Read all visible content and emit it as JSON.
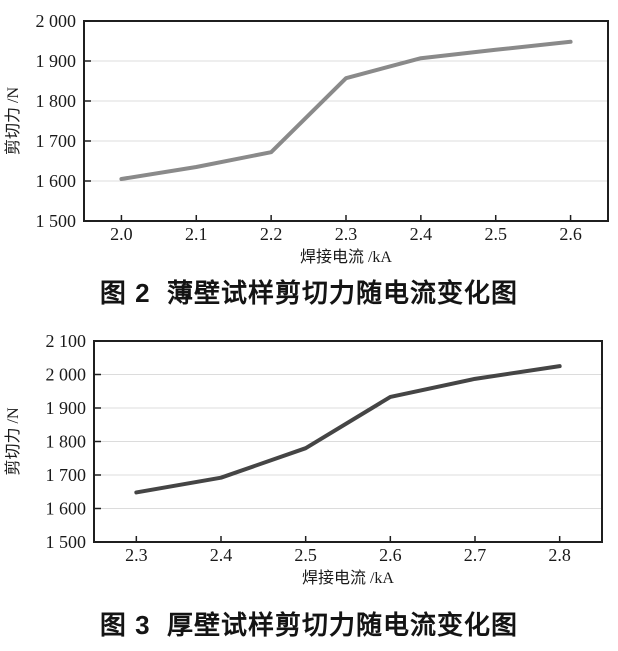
{
  "page": {
    "background": "#ffffff"
  },
  "chart_data": [
    {
      "type": "line",
      "figure_label": "图 2",
      "caption": "图 2  薄壁试样剪切力随电流变化图",
      "xlabel": "焊接电流 /kA",
      "ylabel": "剪切力 /N",
      "x_labels": [
        "2.0",
        "2.1",
        "2.2",
        "2.3",
        "2.4",
        "2.5",
        "2.6"
      ],
      "values": [
        1605,
        1635,
        1672,
        1857,
        1907,
        1928,
        1948
      ],
      "ylim": [
        1500,
        2000
      ],
      "ytick_step": 100,
      "ytick_labels": [
        "1 500",
        "1 600",
        "1 700",
        "1 800",
        "1 900",
        "2 000"
      ],
      "grid": true,
      "legend": "none",
      "line_color": "#8a8a8a",
      "axis_color": "#1f1f1f",
      "grid_color": "#dcdcdc"
    },
    {
      "type": "line",
      "figure_label": "图 3",
      "caption": "图 3  厚壁试样剪切力随电流变化图",
      "xlabel": "焊接电流 /kA",
      "ylabel": "剪切力 /N",
      "x_labels": [
        "2.3",
        "2.4",
        "2.5",
        "2.6",
        "2.7",
        "2.8"
      ],
      "values": [
        1648,
        1692,
        1780,
        1933,
        1987,
        2025
      ],
      "ylim": [
        1500,
        2100
      ],
      "ytick_step": 100,
      "ytick_labels": [
        "1 500",
        "1 600",
        "1 700",
        "1 800",
        "1 900",
        "2 000",
        "2 100"
      ],
      "grid": true,
      "legend": "none",
      "line_color": "#454545",
      "axis_color": "#1f1f1f",
      "grid_color": "#dcdcdc"
    }
  ]
}
